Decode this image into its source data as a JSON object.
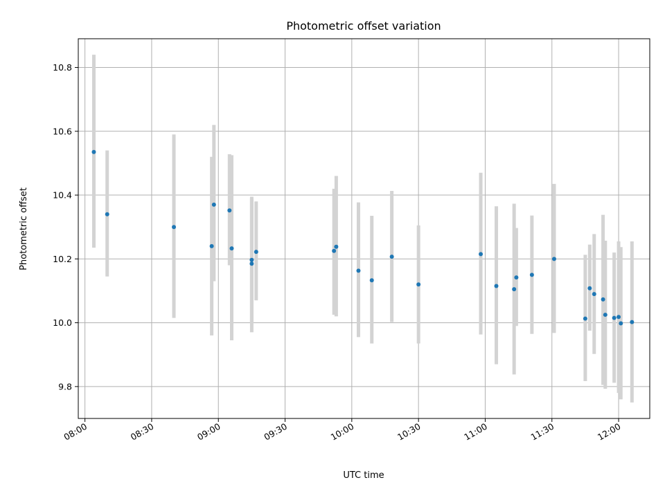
{
  "chart_data": {
    "type": "scatter",
    "title": "Photometric offset variation",
    "xlabel": "UTC time",
    "ylabel": "Photometric offset",
    "x_ticks": [
      "08:00",
      "08:30",
      "09:00",
      "09:30",
      "10:00",
      "10:30",
      "11:00",
      "11:30",
      "12:00"
    ],
    "y_ticks": [
      "9.8",
      "10.0",
      "10.2",
      "10.4",
      "10.6",
      "10.8"
    ],
    "xlim": [
      "07:57",
      "12:14"
    ],
    "ylim": [
      9.7,
      10.89
    ],
    "grid": true,
    "colors": {
      "marker": "#1f77b4",
      "errorbar": "#d3d3d3"
    },
    "series": [
      {
        "points": [
          {
            "t": "08:04",
            "y": 10.535,
            "lo": 10.235,
            "hi": 10.84
          },
          {
            "t": "08:10",
            "y": 10.34,
            "lo": 10.145,
            "hi": 10.54
          },
          {
            "t": "08:40",
            "y": 10.3,
            "lo": 10.015,
            "hi": 10.59
          },
          {
            "t": "08:57",
            "y": 10.24,
            "lo": 9.96,
            "hi": 10.52
          },
          {
            "t": "08:58",
            "y": 10.37,
            "lo": 10.13,
            "hi": 10.62
          },
          {
            "t": "09:05",
            "y": 10.352,
            "lo": 10.18,
            "hi": 10.528
          },
          {
            "t": "09:06",
            "y": 10.233,
            "lo": 9.945,
            "hi": 10.525
          },
          {
            "t": "09:15",
            "y": 10.185,
            "lo": 9.97,
            "hi": 10.395
          },
          {
            "t": "09:15",
            "y": 10.197,
            "lo": 10.0,
            "hi": 10.39
          },
          {
            "t": "09:17",
            "y": 10.222,
            "lo": 10.07,
            "hi": 10.38
          },
          {
            "t": "09:52",
            "y": 10.225,
            "lo": 10.025,
            "hi": 10.42
          },
          {
            "t": "09:53",
            "y": 10.238,
            "lo": 10.02,
            "hi": 10.46
          },
          {
            "t": "10:03",
            "y": 10.163,
            "lo": 9.955,
            "hi": 10.377
          },
          {
            "t": "10:09",
            "y": 10.133,
            "lo": 9.935,
            "hi": 10.335
          },
          {
            "t": "10:18",
            "y": 10.207,
            "lo": 10.002,
            "hi": 10.413
          },
          {
            "t": "10:30",
            "y": 10.12,
            "lo": 9.935,
            "hi": 10.305
          },
          {
            "t": "10:58",
            "y": 10.215,
            "lo": 9.963,
            "hi": 10.47
          },
          {
            "t": "11:05",
            "y": 10.115,
            "lo": 9.87,
            "hi": 10.365
          },
          {
            "t": "11:13",
            "y": 10.105,
            "lo": 9.838,
            "hi": 10.373
          },
          {
            "t": "11:14",
            "y": 10.142,
            "lo": 9.99,
            "hi": 10.297
          },
          {
            "t": "11:21",
            "y": 10.15,
            "lo": 9.965,
            "hi": 10.336
          },
          {
            "t": "11:31",
            "y": 10.2,
            "lo": 9.968,
            "hi": 10.435
          },
          {
            "t": "11:45",
            "y": 10.013,
            "lo": 9.817,
            "hi": 10.213
          },
          {
            "t": "11:47",
            "y": 10.108,
            "lo": 9.975,
            "hi": 10.245
          },
          {
            "t": "11:49",
            "y": 10.09,
            "lo": 9.902,
            "hi": 10.278
          },
          {
            "t": "11:53",
            "y": 10.073,
            "lo": 9.805,
            "hi": 10.338
          },
          {
            "t": "11:54",
            "y": 10.025,
            "lo": 9.793,
            "hi": 10.257
          },
          {
            "t": "11:58",
            "y": 10.015,
            "lo": 9.812,
            "hi": 10.22
          },
          {
            "t": "12:00",
            "y": 10.018,
            "lo": 9.78,
            "hi": 10.255
          },
          {
            "t": "12:01",
            "y": 9.998,
            "lo": 9.76,
            "hi": 10.237
          },
          {
            "t": "12:06",
            "y": 10.002,
            "lo": 9.75,
            "hi": 10.255
          }
        ]
      }
    ]
  }
}
